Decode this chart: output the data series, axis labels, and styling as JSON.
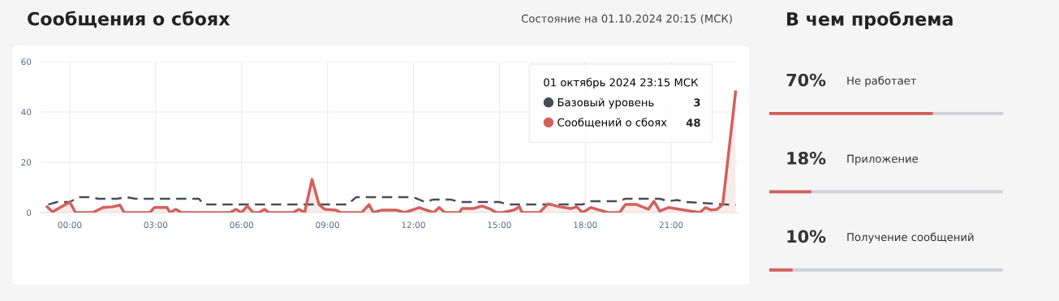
{
  "chart_data": [
    {
      "type": "line",
      "title": "Сообщения о сбоях",
      "subtitle": "Состояние на 01.10.2024 20:15 (МСК)",
      "legend_title": "01 октябрь 2024 23:15 МСК",
      "legend": "top right",
      "annotations": [
        "3",
        "48"
      ],
      "grid": true,
      "marker": "none",
      "xlim": [
        -1.02,
        23.35
      ],
      "xticks": [
        {
          "value": 0,
          "label": "00:00"
        },
        {
          "value": 3,
          "label": "03:00"
        },
        {
          "value": 6,
          "label": "06:00"
        },
        {
          "value": 9,
          "label": "09:00"
        },
        {
          "value": 12,
          "label": "12:00"
        },
        {
          "value": 15,
          "label": "15:00"
        },
        {
          "value": 18,
          "label": "18:00"
        },
        {
          "value": 21,
          "label": "21:00"
        }
      ],
      "ylim": [
        0,
        60
      ],
      "yticks": [
        0,
        20,
        40,
        60
      ],
      "series": [
        {
          "name": "Базовый уровень",
          "color": "#4a4d57",
          "line_style": "dashed",
          "x": [
            -0.75,
            -0.45,
            0,
            0.3,
            0.7,
            1.0,
            1.65,
            2.0,
            2.3,
            4.5,
            4.7,
            6.0,
            9.7,
            10.0,
            12.0,
            12.4,
            12.7,
            13.3,
            13.6,
            15.0,
            15.3,
            17.9,
            18.2,
            19.2,
            19.4,
            20.6,
            20.9,
            21.2,
            21.5,
            23.25
          ],
          "values": [
            3.2,
            4.2,
            4.2,
            6.1,
            6.1,
            5.5,
            5.5,
            6.1,
            5.5,
            5.5,
            3.2,
            3.2,
            3.2,
            6.1,
            6.1,
            4.2,
            5.2,
            5.2,
            4.2,
            4.2,
            3.2,
            3.2,
            4.5,
            4.5,
            5.5,
            5.5,
            4.5,
            5.0,
            4.2,
            3
          ]
        },
        {
          "name": "Сообщений о сбоях",
          "color": "#d2605c",
          "type": "area",
          "x": [
            -0.79,
            -0.6,
            0,
            0.2,
            0.8,
            1.16,
            1.5,
            1.75,
            1.9,
            2.8,
            2.95,
            3.4,
            3.5,
            3.7,
            3.9,
            5.6,
            5.8,
            6.0,
            6.2,
            6.4,
            6.6,
            6.8,
            6.95,
            7.8,
            8.0,
            8.2,
            8.46,
            8.7,
            8.9,
            9.3,
            9.45,
            10.2,
            10.45,
            10.6,
            10.9,
            11.4,
            11.7,
            12.2,
            12.7,
            12.9,
            13.1,
            13.6,
            13.7,
            14.1,
            14.4,
            14.7,
            14.9,
            15.1,
            15.5,
            15.7,
            15.8,
            16.4,
            16.7,
            17.1,
            17.5,
            17.7,
            17.9,
            18.2,
            18.8,
            19.2,
            19.4,
            19.8,
            20.2,
            20.4,
            20.6,
            20.9,
            21.3,
            22.0,
            22.2,
            22.4,
            22.6,
            22.8,
            23.25
          ],
          "values": [
            2.3,
            0.3,
            4.2,
            0,
            0,
            2,
            2.3,
            3,
            0,
            0,
            2,
            2,
            0,
            1.3,
            0,
            0,
            1.3,
            0,
            2.6,
            0,
            0,
            1.3,
            0,
            0,
            1.3,
            0,
            13.2,
            3.2,
            1.3,
            1,
            0,
            0,
            3.2,
            0,
            1,
            1,
            0,
            2,
            0,
            2,
            0,
            0,
            1.6,
            1.6,
            2.6,
            1.3,
            0,
            0,
            1,
            2.3,
            0,
            0,
            3.5,
            2.3,
            1.6,
            2.3,
            0,
            2,
            0,
            0,
            3.2,
            3.2,
            1.3,
            4.5,
            0.6,
            2,
            1.3,
            0,
            2,
            1,
            1.3,
            3.2,
            48
          ]
        }
      ]
    },
    {
      "type": "bar",
      "orientation": "horizontal",
      "title": "В чем проблема",
      "categories": [
        "Не работает",
        "Приложение",
        "Получение сообщений"
      ],
      "values": [
        70,
        18,
        10
      ],
      "value_labels": [
        "70%",
        "18%",
        "10%"
      ],
      "color": "#d2605c",
      "xlim": [
        0,
        100
      ]
    }
  ]
}
